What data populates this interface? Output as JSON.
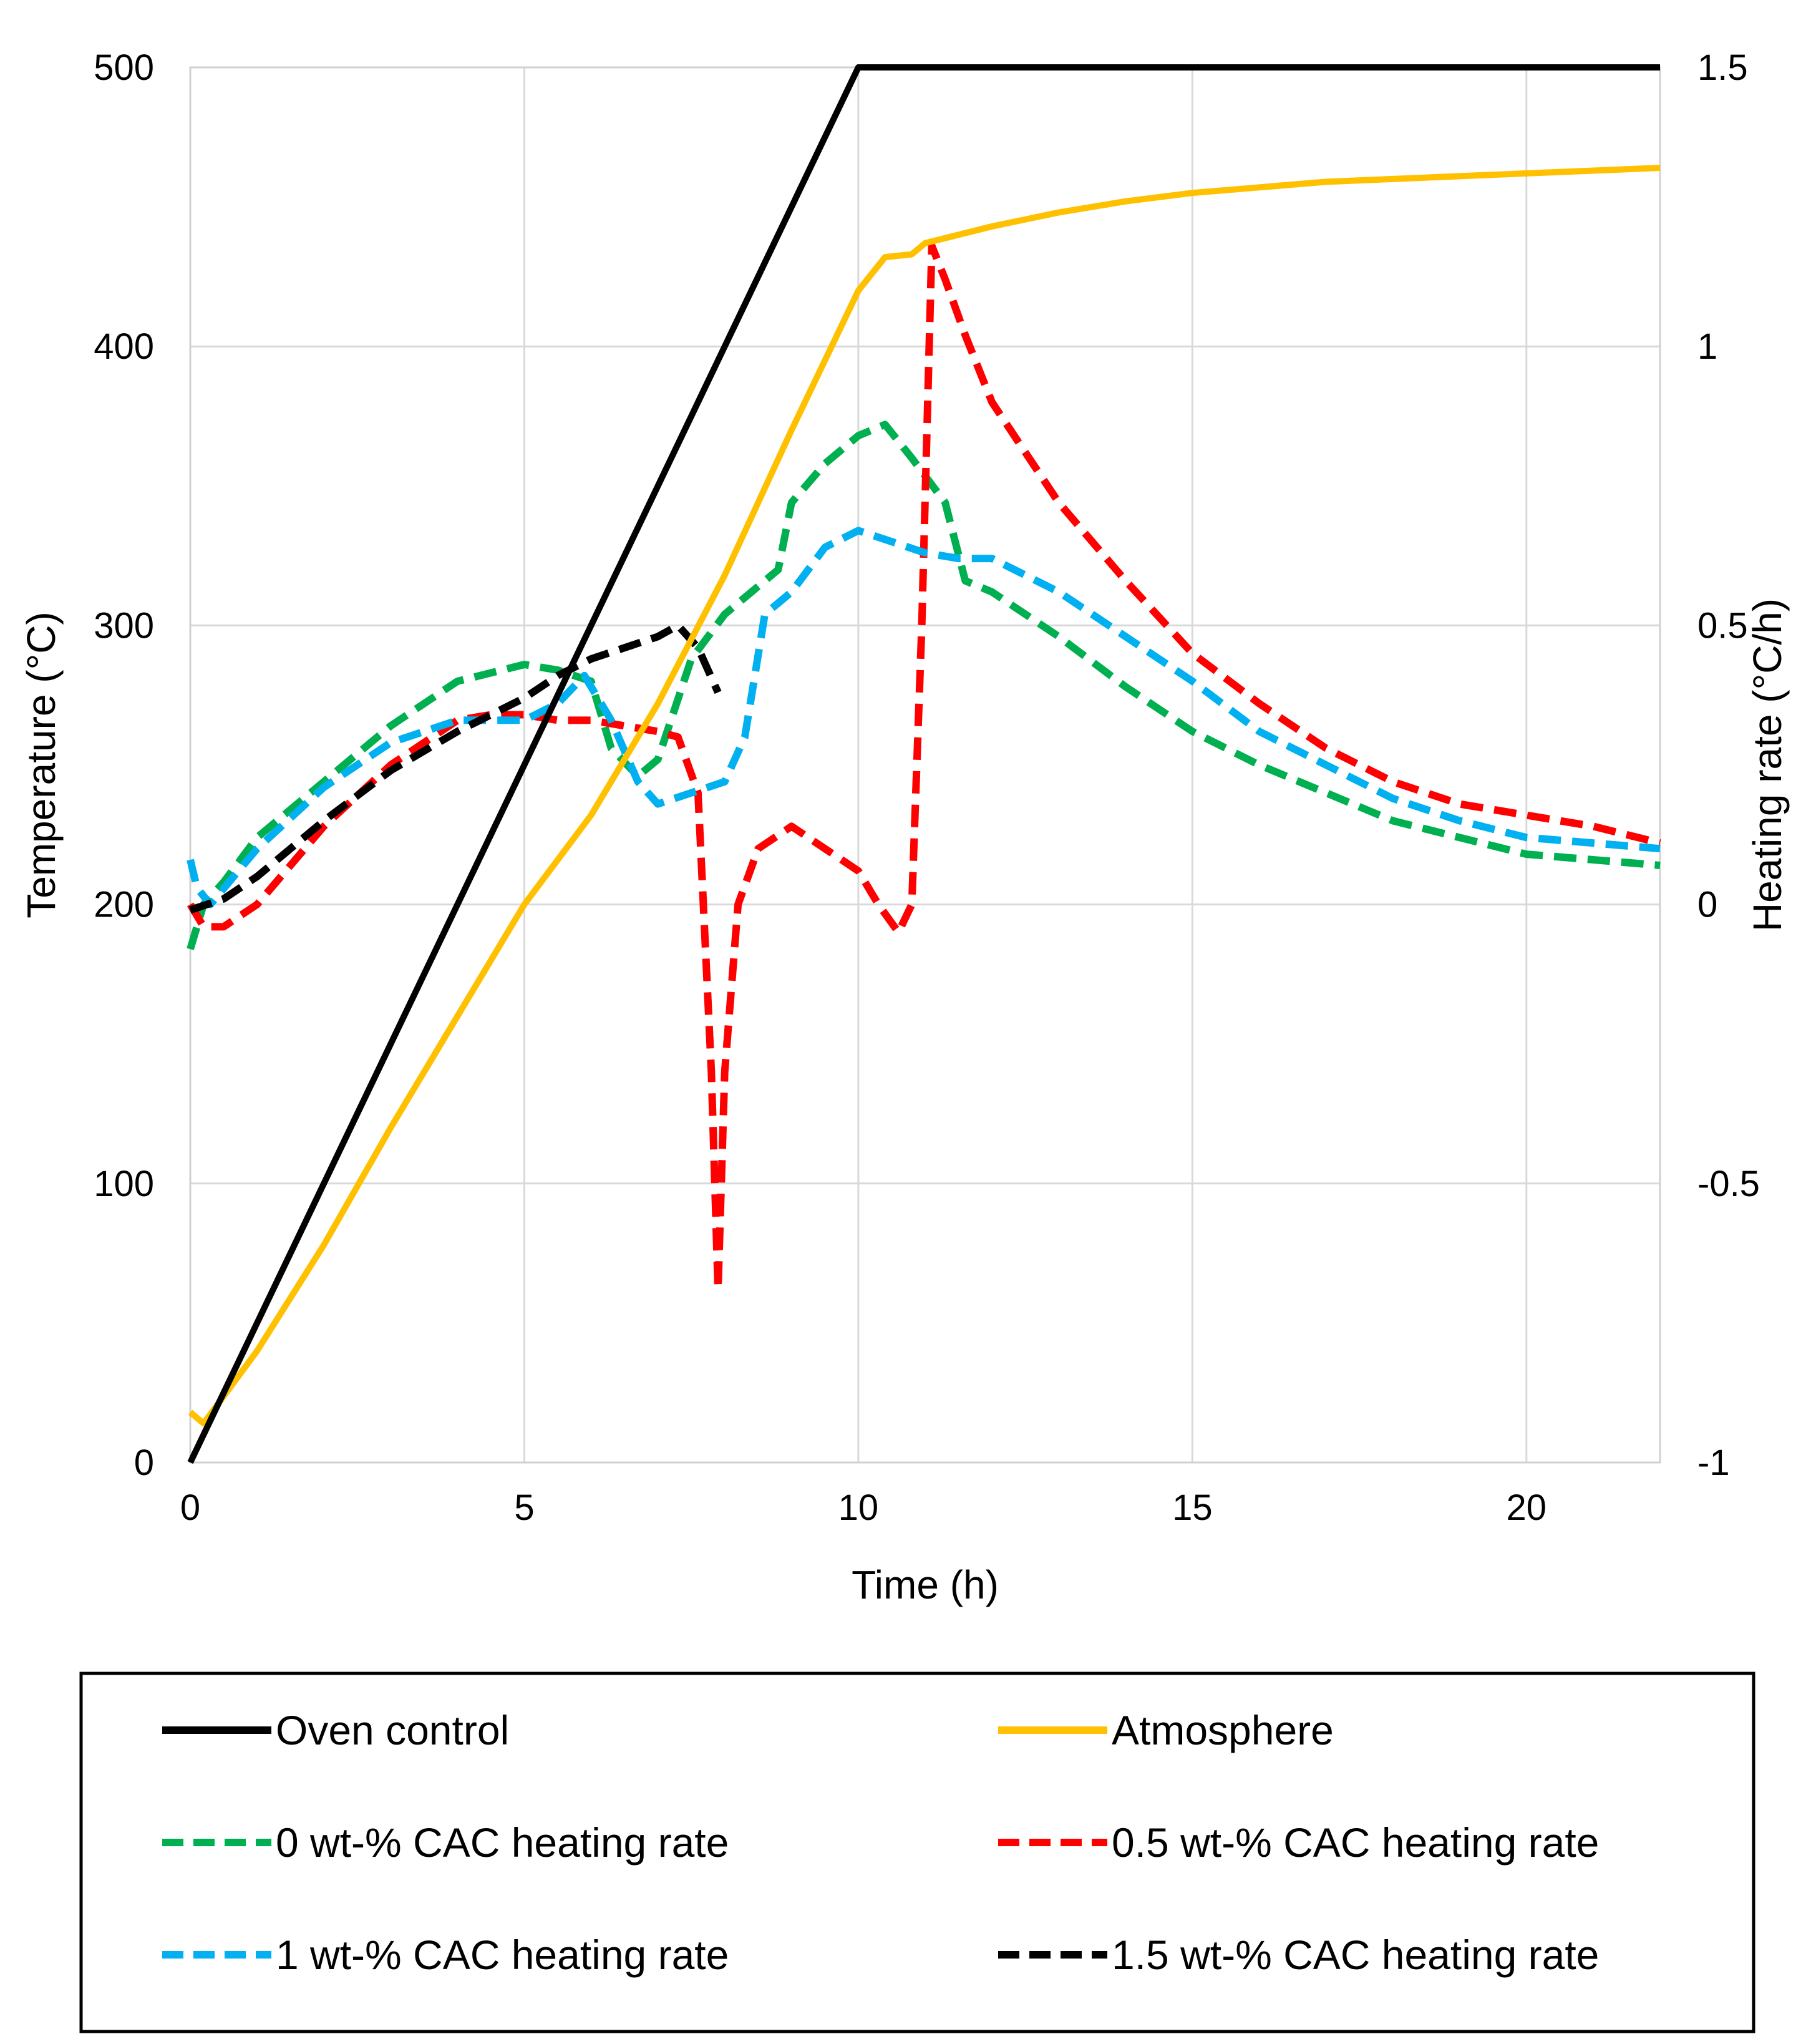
{
  "chart_data": {
    "type": "line",
    "title": "",
    "xlabel": "Time (h)",
    "ylabel": "Temperature (°C)",
    "y2label": "Heating rate (°C/h)",
    "xlim": [
      0,
      22
    ],
    "ylim": [
      0,
      500
    ],
    "y2lim": [
      -1,
      1.5
    ],
    "xticks": [
      "0",
      "5",
      "10",
      "15",
      "20"
    ],
    "yticks": [
      "0",
      "100",
      "200",
      "300",
      "400",
      "500"
    ],
    "y2ticks": [
      "-1",
      "-0.5",
      "0",
      "0.5",
      "1",
      "1.5"
    ],
    "grid": true,
    "legend_position": "bottom",
    "series": [
      {
        "name": "Oven control",
        "axis": "left",
        "color": "#000000",
        "dash": "solid",
        "x": [
          0,
          10,
          22
        ],
        "y": [
          0,
          500,
          500
        ]
      },
      {
        "name": "Atmosphere",
        "axis": "left",
        "color": "#FFC000",
        "dash": "solid",
        "x": [
          0,
          0.2,
          1,
          2,
          3,
          4,
          5,
          6,
          7,
          8,
          9,
          10,
          10.4,
          10.8,
          11,
          12,
          13,
          14,
          15,
          16,
          17,
          18,
          19,
          20,
          21,
          22
        ],
        "y": [
          18,
          14,
          40,
          78,
          120,
          160,
          200,
          232,
          272,
          318,
          370,
          420,
          432,
          433,
          437,
          443,
          448,
          452,
          455,
          457,
          459,
          460,
          461,
          462,
          463,
          464
        ]
      },
      {
        "name": "0 wt-% CAC heating rate",
        "axis": "right",
        "color": "#00B050",
        "dash": "dashed",
        "x": [
          0,
          0.2,
          0.5,
          1,
          2,
          3,
          4,
          5,
          5.5,
          6,
          6.3,
          6.7,
          7,
          7.5,
          8,
          8.5,
          8.8,
          9,
          9.5,
          10,
          10.4,
          10.8,
          11.3,
          11.6,
          12,
          13,
          14,
          15,
          16,
          17,
          18,
          19,
          20,
          21,
          22
        ],
        "y": [
          -0.08,
          0.0,
          0.04,
          0.12,
          0.22,
          0.32,
          0.4,
          0.43,
          0.42,
          0.4,
          0.28,
          0.23,
          0.26,
          0.44,
          0.52,
          0.57,
          0.6,
          0.72,
          0.79,
          0.84,
          0.86,
          0.8,
          0.72,
          0.58,
          0.56,
          0.48,
          0.39,
          0.31,
          0.25,
          0.2,
          0.15,
          0.12,
          0.09,
          0.08,
          0.07
        ]
      },
      {
        "name": "0.5 wt-% CAC heating rate",
        "axis": "right",
        "color": "#FF0000",
        "dash": "dashed",
        "x": [
          0,
          0.2,
          0.5,
          1,
          2,
          3,
          4,
          4.5,
          5,
          5.5,
          6,
          6.5,
          7,
          7.3,
          7.6,
          7.8,
          7.9,
          8.0,
          8.2,
          8.5,
          9,
          9.5,
          10,
          10.3,
          10.6,
          10.8,
          10.95,
          11.1,
          11.3,
          11.6,
          12,
          13,
          14,
          15,
          16,
          17,
          18,
          19,
          20,
          21,
          22
        ],
        "y": [
          0.0,
          -0.04,
          -0.04,
          0.0,
          0.14,
          0.25,
          0.33,
          0.34,
          0.34,
          0.33,
          0.33,
          0.32,
          0.31,
          0.3,
          0.2,
          -0.3,
          -0.69,
          -0.3,
          0.0,
          0.1,
          0.14,
          0.1,
          0.06,
          0.0,
          -0.05,
          0.0,
          0.5,
          1.18,
          1.12,
          1.02,
          0.9,
          0.72,
          0.58,
          0.45,
          0.36,
          0.28,
          0.22,
          0.18,
          0.16,
          0.14,
          0.11
        ]
      },
      {
        "name": "1 wt-% CAC heating rate",
        "axis": "right",
        "color": "#00B0F0",
        "dash": "dashed",
        "x": [
          0,
          0.1,
          0.3,
          1,
          2,
          3,
          4,
          5,
          5.5,
          5.9,
          6.3,
          6.7,
          7,
          7.5,
          8,
          8.3,
          8.6,
          9,
          9.5,
          10,
          10.5,
          11,
          11.5,
          12,
          13,
          14,
          15,
          16,
          17,
          18,
          19,
          20,
          21,
          22
        ],
        "y": [
          0.08,
          0.03,
          0.0,
          0.1,
          0.21,
          0.29,
          0.33,
          0.33,
          0.36,
          0.41,
          0.33,
          0.22,
          0.18,
          0.2,
          0.22,
          0.3,
          0.52,
          0.56,
          0.64,
          0.67,
          0.65,
          0.63,
          0.62,
          0.62,
          0.56,
          0.48,
          0.4,
          0.31,
          0.25,
          0.19,
          0.15,
          0.12,
          0.11,
          0.1
        ]
      },
      {
        "name": "1.5 wt-% CAC heating rate",
        "axis": "right",
        "color": "#000000",
        "dash": "dashed",
        "x": [
          0,
          0.5,
          1,
          2,
          3,
          4,
          5,
          5.5,
          6,
          6.5,
          7,
          7.3,
          7.6,
          7.9
        ],
        "y": [
          -0.01,
          0.01,
          0.05,
          0.15,
          0.24,
          0.31,
          0.37,
          0.41,
          0.44,
          0.46,
          0.48,
          0.5,
          0.46,
          0.38
        ]
      }
    ]
  }
}
